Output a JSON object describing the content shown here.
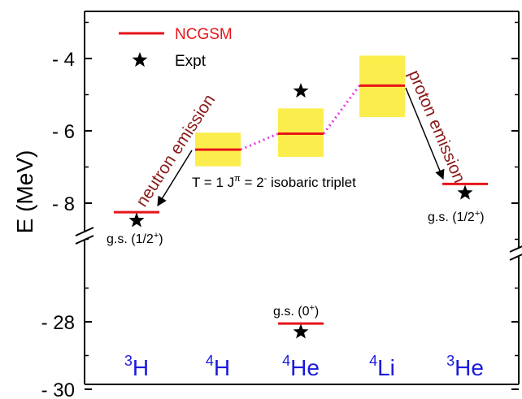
{
  "chart_data": {
    "type": "level-scheme",
    "ylabel": "E (MeV)",
    "y_axis_upper": {
      "ylim": [
        -9.4,
        -2.6
      ],
      "ticks": [
        "- 4",
        "- 6",
        "- 8"
      ],
      "tick_values": [
        -4,
        -6,
        -8
      ]
    },
    "y_axis_lower": {
      "ylim": [
        -30,
        -26.0
      ],
      "ticks": [
        "- 28",
        "- 30"
      ],
      "tick_values": [
        -28,
        -30
      ]
    },
    "legend": [
      {
        "label": "NCGSM",
        "marker": "line",
        "color": "#e8141a"
      },
      {
        "label": "Expt",
        "marker": "star",
        "color": "#000000"
      }
    ],
    "categories": [
      {
        "base": "H",
        "mass": "3"
      },
      {
        "base": "H",
        "mass": "4"
      },
      {
        "base": "He",
        "mass": "4"
      },
      {
        "base": "Li",
        "mass": "4"
      },
      {
        "base": "He",
        "mass": "3"
      }
    ],
    "series": [
      {
        "name": "NCGSM",
        "values": [
          -8.25,
          -6.52,
          -6.08,
          -4.75,
          -7.47,
          -28.05
        ],
        "x": [
          0,
          1,
          2,
          3,
          4,
          2
        ],
        "width_band": [
          null,
          [
            -6.98,
            -6.05
          ],
          [
            -6.72,
            -5.38
          ],
          [
            -5.62,
            -3.92
          ],
          null,
          null
        ]
      },
      {
        "name": "Expt",
        "values": [
          -8.48,
          -4.9,
          -7.72,
          -28.3
        ],
        "x": [
          0,
          2,
          4,
          2
        ]
      }
    ],
    "annotations": {
      "neutron": "neutron emission",
      "proton": "proton emission",
      "triplet_pre": "T = 1  J",
      "triplet_pi": "π",
      "triplet_mid": " = 2",
      "triplet_sup": "-",
      "triplet_post": "  isobaric triplet",
      "gs_3H_pre": "g.s. (1/2",
      "gs_3H_sup": "+",
      "gs_3He_pre": "g.s. (1/2",
      "gs_3He_sup": "+",
      "gs_4He_pre": "g.s. (0",
      "gs_4He_sup": "+",
      "close": ")"
    },
    "colors": {
      "ncgsm": "#e8141a",
      "band": "#fbee4c",
      "dotted": "#e83be8",
      "nucleus_label": "#1a1adb",
      "emission_text": "#8b1a1a"
    }
  }
}
